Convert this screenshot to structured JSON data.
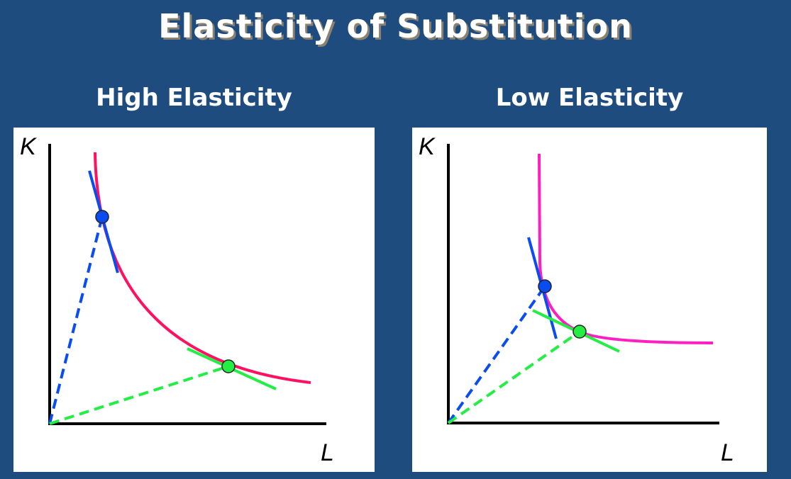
{
  "title": "Elasticity of Substitution",
  "panels": [
    {
      "title": "High Elasticity",
      "y_label": "K",
      "x_label": "L"
    },
    {
      "title": "Low Elasticity",
      "y_label": "K",
      "x_label": "L"
    }
  ],
  "colors": {
    "background": "#1f4c7f",
    "curve_high": "#ff1060",
    "curve_low": "#ff1fc0",
    "blue": "#0a4cf0",
    "green": "#22ee44"
  }
}
